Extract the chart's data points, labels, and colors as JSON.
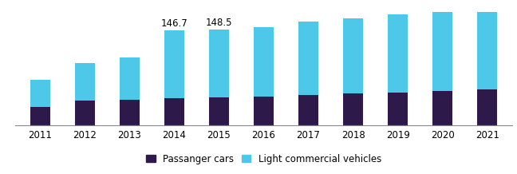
{
  "years": [
    2011,
    2012,
    2013,
    2014,
    2015,
    2016,
    2017,
    2018,
    2019,
    2020,
    2021
  ],
  "passenger_cars": [
    28,
    38,
    40,
    42,
    43,
    45,
    47,
    49,
    51,
    53,
    55
  ],
  "light_commercial": [
    42,
    58,
    65,
    104.7,
    105.5,
    107,
    113,
    116,
    121,
    126,
    133
  ],
  "annotations": {
    "2014": "146.7",
    "2015": "148.5"
  },
  "bar_color_passenger": "#2e1a4a",
  "bar_color_lcv": "#4ec8e8",
  "legend_passenger": "Passanger cars",
  "legend_lcv": "Light commercial vehicles",
  "background_color": "#ffffff",
  "ylim": [
    0,
    175
  ],
  "bar_width": 0.45,
  "annotation_fontsize": 8.5,
  "tick_fontsize": 8.5,
  "legend_fontsize": 8.5
}
